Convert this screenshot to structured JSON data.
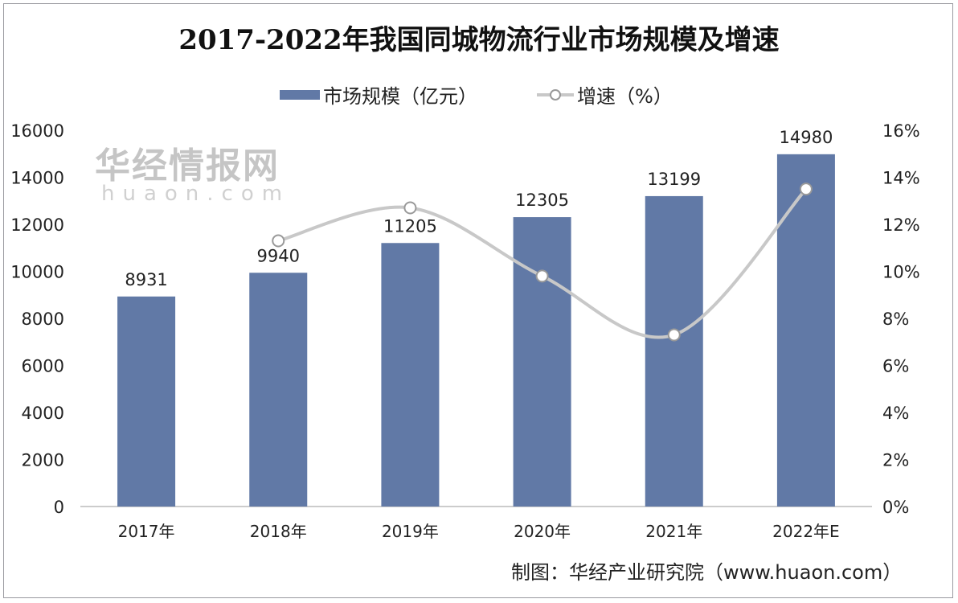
{
  "chart_data": {
    "type": "bar+line",
    "title": "2017-2022年我国同城物流行业市场规模及增速",
    "categories": [
      "2017年",
      "2018年",
      "2019年",
      "2020年",
      "2021年",
      "2022年E"
    ],
    "series": [
      {
        "name": "市场规模（亿元）",
        "type": "bar",
        "axis": "left",
        "color": "#6179a6",
        "values": [
          8931,
          9940,
          11205,
          12305,
          13199,
          14980
        ],
        "labels": [
          "8931",
          "9940",
          "11205",
          "12305",
          "13199",
          "14980"
        ]
      },
      {
        "name": "增速（%）",
        "type": "line",
        "axis": "right",
        "color": "#c8c8c8",
        "smooth": true,
        "values": [
          null,
          11.3,
          12.7,
          9.8,
          7.3,
          13.5
        ]
      }
    ],
    "left_axis": {
      "ylim": [
        0,
        16000
      ],
      "ticks": [
        "0",
        "2000",
        "4000",
        "6000",
        "8000",
        "10000",
        "12000",
        "14000",
        "16000"
      ]
    },
    "right_axis": {
      "ylim": [
        0,
        16
      ],
      "ticks": [
        "0%",
        "2%",
        "4%",
        "6%",
        "8%",
        "10%",
        "12%",
        "14%",
        "16%"
      ]
    },
    "grid": false,
    "legend_position": "top"
  },
  "source": "制图：华经产业研究院（www.huaon.com）",
  "watermark": {
    "text": "华经情报网",
    "sub": "huaon.com"
  }
}
